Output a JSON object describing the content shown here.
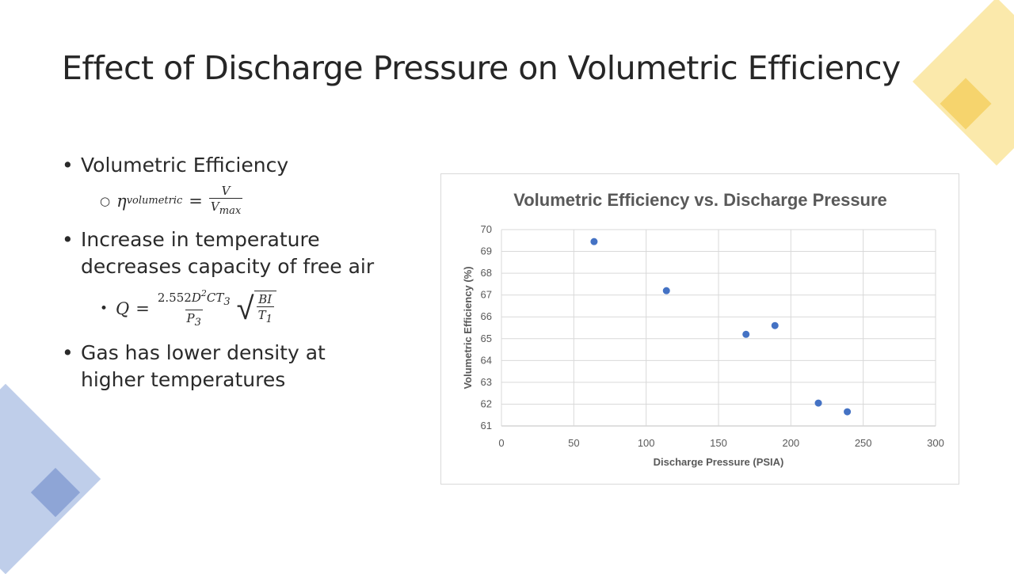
{
  "slide": {
    "title": "Effect of Discharge Pressure on Volumetric Efficiency",
    "bullets": {
      "b1": "Volumetric Efficiency",
      "b2": "Increase in temperature decreases capacity of free air",
      "b3": "Gas has lower density at higher temperatures"
    },
    "formula1": {
      "lhs_symbol": "η",
      "lhs_subscript": "volumetric",
      "equals": "=",
      "numerator": "V",
      "denominator_base": "V",
      "denominator_subscript": "max"
    },
    "formula2": {
      "lhs": "Q",
      "equals": "=",
      "numerator_coef": "2.552",
      "numerator_D": "D",
      "numerator_D_exp": "2",
      "numerator_CT": "CT",
      "numerator_CT_sub": "3",
      "denominator_base": "P",
      "denominator_sub": "3",
      "root_numerator": "BI",
      "root_denominator_base": "T",
      "root_denominator_sub": "1"
    },
    "bullet_glyphs": {
      "main": "•",
      "sub_circle": "○",
      "sub_dot": "•"
    }
  },
  "chart_data": {
    "type": "scatter",
    "title": "Volumetric Efficiency vs. Discharge Pressure",
    "xlabel": "Discharge Pressure (PSIA)",
    "ylabel": "Volumetric Efficiency (%)",
    "xlim": [
      0,
      300
    ],
    "ylim": [
      61,
      70
    ],
    "xticks": [
      0,
      50,
      100,
      150,
      200,
      250,
      300
    ],
    "yticks": [
      61,
      62,
      63,
      64,
      65,
      66,
      67,
      68,
      69,
      70
    ],
    "grid": true,
    "legend": "none",
    "marker_color": "#4472c4",
    "points": [
      {
        "x": 64,
        "y": 69.45
      },
      {
        "x": 114,
        "y": 67.2
      },
      {
        "x": 169,
        "y": 65.2
      },
      {
        "x": 189,
        "y": 65.6
      },
      {
        "x": 219,
        "y": 62.05
      },
      {
        "x": 239,
        "y": 61.65
      }
    ]
  },
  "colors": {
    "accent_yellow": "#f7d766",
    "accent_blue": "#a9bde3",
    "marker": "#4472c4"
  }
}
